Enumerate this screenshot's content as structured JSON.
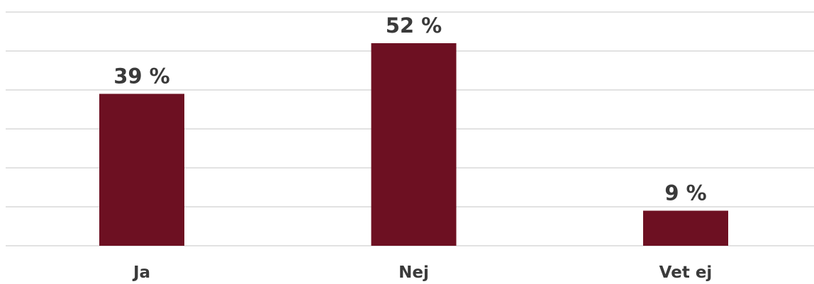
{
  "chart_data": {
    "type": "bar",
    "categories": [
      "Ja",
      "Nej",
      "Vet ej"
    ],
    "values": [
      39,
      52,
      9
    ],
    "data_labels": [
      "39 %",
      "52 %",
      "9 %"
    ],
    "unit": "%",
    "ylim": [
      0,
      60
    ],
    "grid": true,
    "legend": "none",
    "bar_color": "#6d1022",
    "title": "",
    "xlabel": "",
    "ylabel": ""
  }
}
